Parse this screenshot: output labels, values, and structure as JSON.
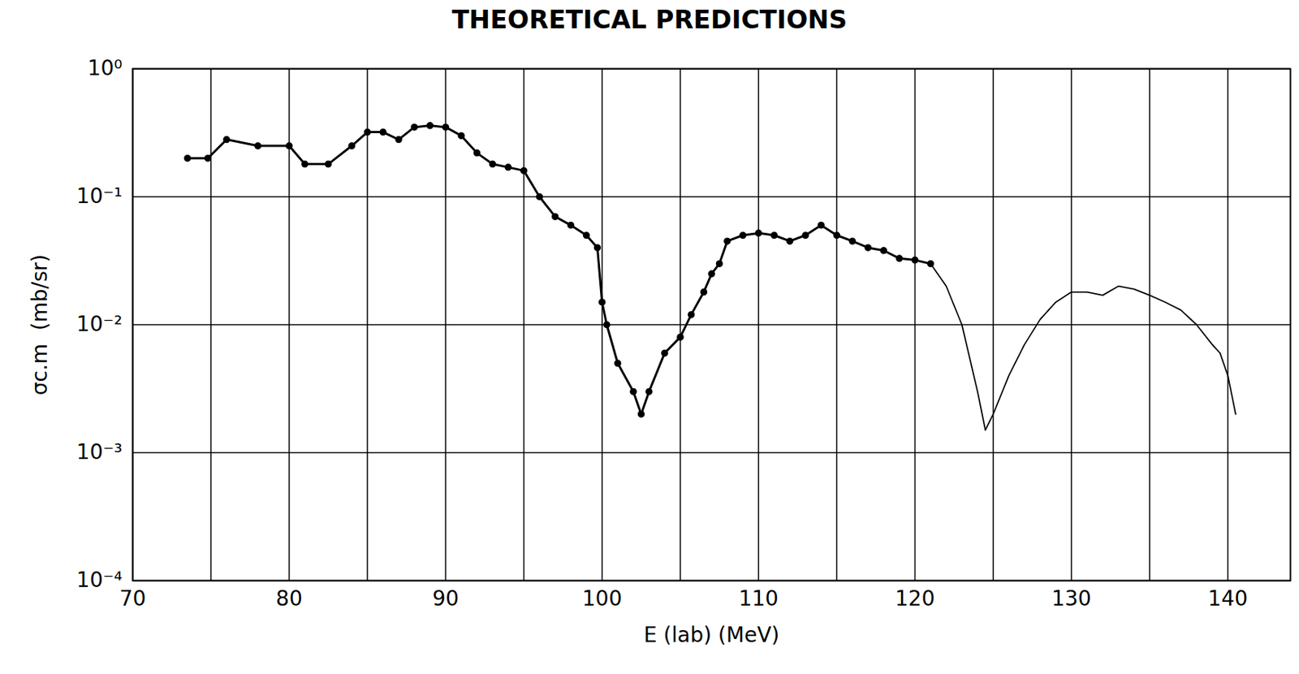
{
  "chart_data": {
    "type": "line",
    "title": "THEORETICAL PREDICTIONS",
    "x_label": "E (lab) (MeV)",
    "y_label": "σc.m  (mb/sr)",
    "log": "y",
    "grid": true,
    "xlim": [
      70,
      144
    ],
    "xticks": [
      70,
      80,
      90,
      100,
      110,
      120,
      130,
      140
    ],
    "ylim": [
      0.0001,
      1
    ],
    "yticks": [
      {
        "value": 0.0001,
        "label": "10⁻⁴"
      },
      {
        "value": 0.001,
        "label": "10⁻³"
      },
      {
        "value": 0.01,
        "label": "10⁻²"
      },
      {
        "value": 0.1,
        "label": "10⁻¹"
      },
      {
        "value": 1,
        "label": "10⁰"
      }
    ],
    "series": [
      {
        "color": "#000000",
        "marker": "circle",
        "line_style": "solid",
        "x": [
          73.5,
          74.8,
          76,
          78,
          80,
          81,
          82.5,
          84,
          85,
          86,
          87,
          88,
          89,
          90,
          91,
          92,
          93,
          94,
          95,
          96,
          97,
          98,
          99,
          99.7,
          100,
          100.3,
          101,
          102,
          102.5,
          103,
          104,
          105,
          105.7,
          106.5,
          107,
          107.5,
          108,
          109,
          110,
          111,
          112,
          113,
          114,
          115,
          116,
          117,
          118,
          119,
          120,
          121
        ],
        "values": [
          0.2,
          0.2,
          0.28,
          0.25,
          0.25,
          0.18,
          0.18,
          0.25,
          0.32,
          0.32,
          0.28,
          0.35,
          0.36,
          0.35,
          0.3,
          0.22,
          0.18,
          0.17,
          0.16,
          0.1,
          0.07,
          0.06,
          0.05,
          0.04,
          0.015,
          0.01,
          0.005,
          0.003,
          0.002,
          0.003,
          0.006,
          0.008,
          0.012,
          0.018,
          0.025,
          0.03,
          0.045,
          0.05,
          0.052,
          0.05,
          0.045,
          0.05,
          0.06,
          0.05,
          0.045,
          0.04,
          0.038,
          0.033,
          0.032,
          0.03
        ]
      },
      {
        "color": "#000000",
        "marker": "none",
        "line_style": "solid",
        "x": [
          121,
          122,
          123,
          124,
          124.5,
          125,
          126,
          127,
          128,
          129,
          130,
          131,
          132,
          133,
          134,
          135,
          136,
          137,
          138,
          139,
          139.5,
          140,
          140.5
        ],
        "values": [
          0.03,
          0.02,
          0.01,
          0.003,
          0.0015,
          0.002,
          0.004,
          0.007,
          0.011,
          0.015,
          0.018,
          0.018,
          0.017,
          0.02,
          0.019,
          0.017,
          0.015,
          0.013,
          0.01,
          0.007,
          0.006,
          0.004,
          0.002
        ]
      }
    ]
  }
}
